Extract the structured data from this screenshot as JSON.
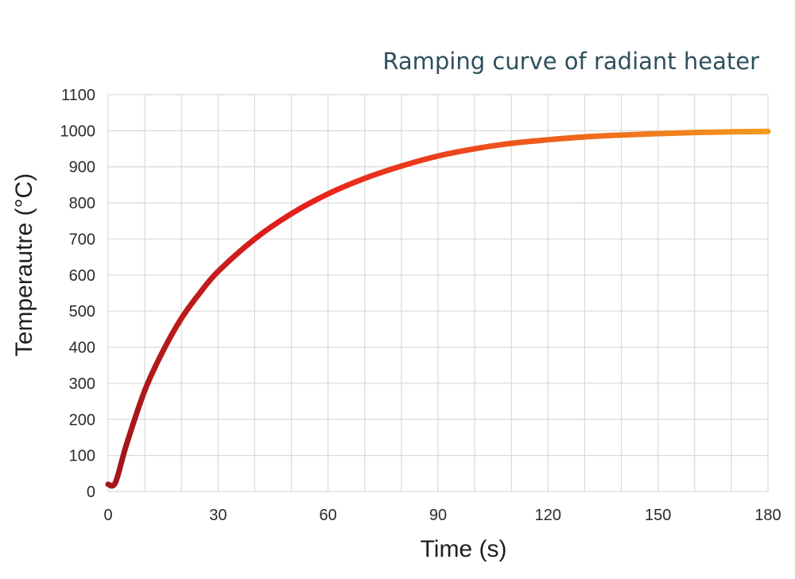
{
  "chart_data": {
    "type": "line",
    "title": "Ramping curve of radiant heater",
    "xlabel": "Time (s)",
    "ylabel": "Temperautre (°C)",
    "xlim": [
      0,
      180
    ],
    "ylim": [
      0,
      1100
    ],
    "x_ticks": [
      0,
      30,
      60,
      90,
      120,
      150,
      180
    ],
    "y_ticks": [
      0,
      100,
      200,
      300,
      400,
      500,
      600,
      700,
      800,
      900,
      1000,
      1100
    ],
    "grid": true,
    "series": [
      {
        "name": "Ramping curve",
        "color_start": "#a0161a",
        "color_mid": "#e8201c",
        "color_end": "#f39a1d",
        "x": [
          0,
          2,
          5,
          10,
          15,
          20,
          25,
          30,
          40,
          50,
          60,
          70,
          80,
          90,
          100,
          110,
          120,
          130,
          140,
          150,
          160,
          170,
          180
        ],
        "y": [
          20,
          25,
          130,
          280,
          390,
          480,
          550,
          610,
          700,
          770,
          825,
          868,
          902,
          930,
          950,
          965,
          975,
          983,
          988,
          992,
          995,
          997,
          998
        ]
      }
    ]
  }
}
